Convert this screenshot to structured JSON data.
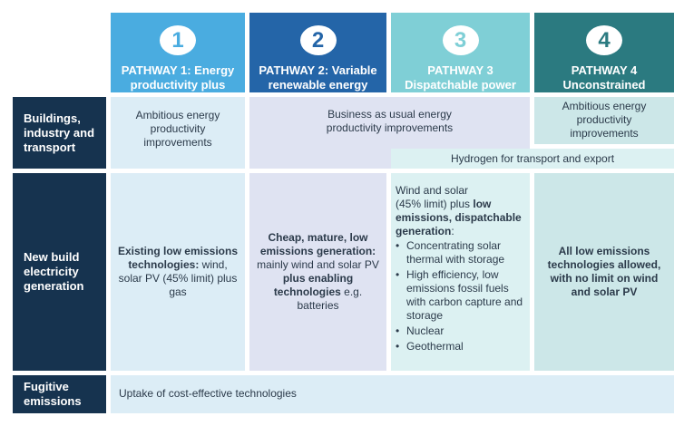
{
  "pathways": [
    {
      "number": "1",
      "title_line1": "PATHWAY 1: Energy",
      "title_line2": "productivity plus",
      "color": "#4aace0",
      "number_color": "#4aace0"
    },
    {
      "number": "2",
      "title_line1": "PATHWAY 2: Variable",
      "title_line2": "renewable energy",
      "color": "#2465a8",
      "number_color": "#2465a8"
    },
    {
      "number": "3",
      "title_line1": "PATHWAY 3",
      "title_line2": "Dispatchable power",
      "color": "#7fcfd6",
      "number_color": "#7fcfd6"
    },
    {
      "number": "4",
      "title_line1": "PATHWAY 4",
      "title_line2": "Unconstrained",
      "color": "#2b7a80",
      "number_color": "#2b7a80"
    }
  ],
  "rows": {
    "buildings": {
      "line1": "Buildings,",
      "line2": "industry and",
      "line3": "transport"
    },
    "electricity": {
      "line1": "New build",
      "line2": "electricity",
      "line3": "generation"
    },
    "fugitive": {
      "line1": "Fugitive",
      "line2": "emissions"
    }
  },
  "buildings_cells": {
    "p1": {
      "line1": "Ambitious energy",
      "line2": "productivity",
      "line3": "improvements"
    },
    "p23": {
      "line1": "Business as usual energy",
      "line2": "productivity improvements"
    },
    "p4": {
      "line1": "Ambitious energy",
      "line2": "productivity",
      "line3": "improvements"
    },
    "hydrogen": "Hydrogen for transport and export"
  },
  "electricity_cells": {
    "p1": {
      "bold": "Existing low emissions technologies:",
      "plain": "wind, solar PV (45% limit) plus gas"
    },
    "p2": {
      "bold1": "Cheap, mature, low emissions generation:",
      "plain1": "mainly wind and solar PV",
      "bold2": "plus enabling technologies",
      "plain2": "e.g. batteries"
    },
    "p3": {
      "intro1": "Wind and solar",
      "intro2": "(45% limit) plus",
      "intro_bold": "low emissions, dispatchable generation",
      "colon": ":",
      "bullets": [
        "Concentrating solar thermal with storage",
        "High efficiency, low emissions fossil fuels with carbon capture and storage",
        "Nuclear",
        "Geothermal"
      ]
    },
    "p4": "All low emissions technologies allowed, with no limit on wind and solar PV"
  },
  "fugitive_cell": "Uptake of cost-effective technologies",
  "colors": {
    "row_label_bg": "#16334f",
    "p1_light": "#dcedf6",
    "p23_light": "#dfe3f2",
    "p3_light": "#dcf1f2",
    "p4_light": "#cce7e8",
    "fugitive_light": "#dcedf6"
  }
}
